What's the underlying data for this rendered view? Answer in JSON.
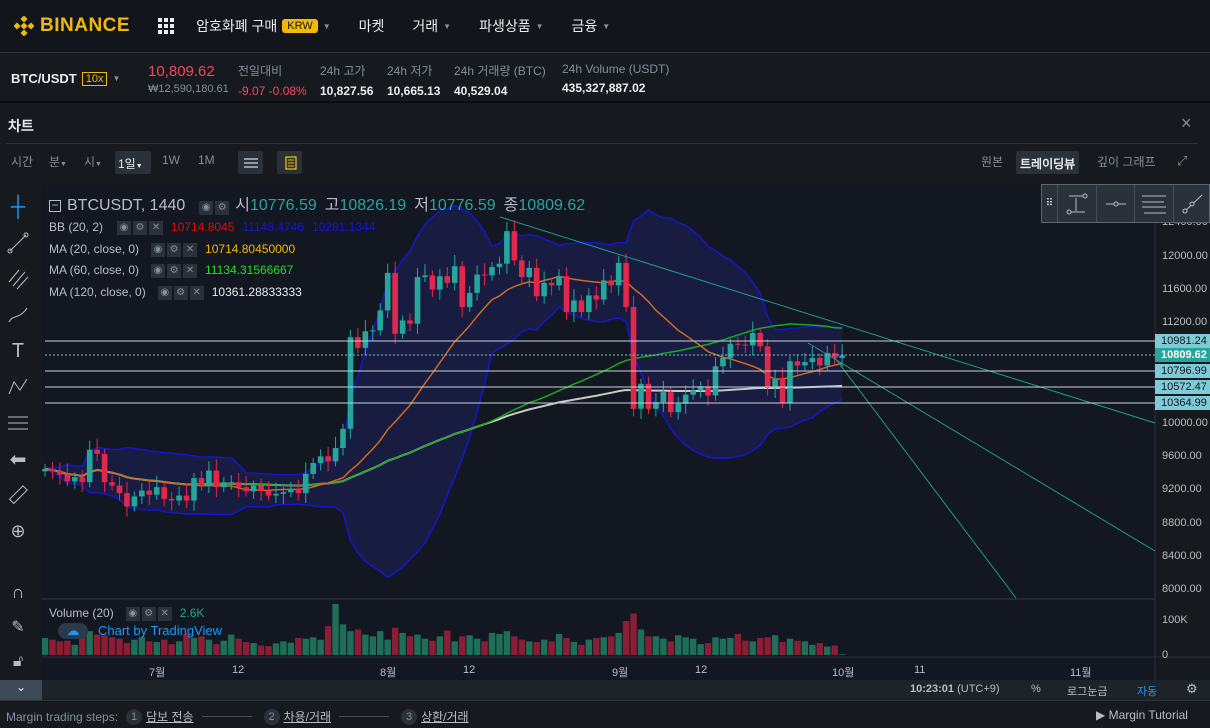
{
  "header": {
    "brand": "BINANCE",
    "nav": [
      {
        "label": "암호화폐 구매",
        "badge": "KRW"
      },
      {
        "label": "마켓"
      },
      {
        "label": "거래"
      },
      {
        "label": "파생상품"
      },
      {
        "label": "금융"
      }
    ]
  },
  "ticker": {
    "pair": "BTC/USDT",
    "leverage": "10x",
    "price": "10,809.62",
    "price_krw": "₩12,590,180.61",
    "stats": [
      {
        "label": "전일대비",
        "value": "-9.07 -0.08%"
      },
      {
        "label": "24h 고가",
        "value": "10,827.56"
      },
      {
        "label": "24h 저가",
        "value": "10,665.13"
      },
      {
        "label": "24h 거래량 (BTC)",
        "value": "40,529.04"
      },
      {
        "label": "24h Volume (USDT)",
        "value": "435,327,887.02"
      }
    ]
  },
  "chart_panel": {
    "title": "차트",
    "toolbar": {
      "time": "시간",
      "minute": "분",
      "hour": "시",
      "day": "1일",
      "week": "1W",
      "month": "1M"
    },
    "views": [
      "원본",
      "트레이딩뷰",
      "깊이 그래프"
    ],
    "active_view": "트레이딩뷰"
  },
  "legend": {
    "symbol": "BTCUSDT, 1440",
    "o_label": "시",
    "o": "10776.59",
    "h_label": "고",
    "h": "10826.19",
    "l_label": "저",
    "l": "10776.59",
    "c_label": "종",
    "c": "10809.62",
    "bb": {
      "label": "BB (20, 2)",
      "basis": "10714.8045",
      "upper": "11148.4746",
      "lower": "10281.1344"
    },
    "ma20": {
      "label": "MA (20, close, 0)",
      "value": "10714.80450000"
    },
    "ma60": {
      "label": "MA (60, close, 0)",
      "value": "11134.31566667"
    },
    "ma120": {
      "label": "MA (120, close, 0)",
      "value": "10361.28833333"
    },
    "volume": {
      "label": "Volume (20)",
      "value": "2.6K"
    },
    "watermark": "Chart by TradingView"
  },
  "price_axis": [
    "12400.00",
    "12000.00",
    "11600.00",
    "11200.00",
    "10000.00",
    "9600.00",
    "9200.00",
    "8800.00",
    "8400.00",
    "8000.00"
  ],
  "price_tags": [
    {
      "value": "10981.24"
    },
    {
      "value": "10809.62",
      "current": true
    },
    {
      "value": "10796.99"
    },
    {
      "value": "10572.47"
    },
    {
      "value": "10364.99"
    }
  ],
  "volume_axis": [
    "100K",
    "0"
  ],
  "time_axis": [
    "7월",
    "12",
    "8월",
    "12",
    "9월",
    "12",
    "10월",
    "11",
    "11월"
  ],
  "bottom_bar": {
    "clock": "10:23:01",
    "tz": "(UTC+9)",
    "percent": "%",
    "log": "로그눈금",
    "auto": "자동"
  },
  "footer": {
    "label": "Margin trading steps:",
    "steps": [
      {
        "n": "1",
        "label": "담보 전송"
      },
      {
        "n": "2",
        "label": "차용/거래"
      },
      {
        "n": "3",
        "label": "상환/거래"
      }
    ],
    "tutorial": "Margin Tutorial"
  },
  "colors": {
    "up": "#26a69a",
    "down": "#e0294a",
    "bb": "#1515d0",
    "ma20": "#d2691e",
    "ma60": "#1aaa1a",
    "ma120": "#c8c8c8",
    "trend": "#1e9e8a",
    "accent": "#f0b90b"
  },
  "chart_data": {
    "type": "candlestick",
    "start_date": "06-16",
    "closes": [
      9450,
      9420,
      9380,
      9300,
      9350,
      9290,
      9680,
      9630,
      9290,
      9250,
      9160,
      9000,
      9120,
      9190,
      9140,
      9230,
      9090,
      9070,
      9130,
      9070,
      9340,
      9250,
      9430,
      9230,
      9290,
      9290,
      9230,
      9180,
      9250,
      9190,
      9130,
      9150,
      9170,
      9210,
      9160,
      9390,
      9520,
      9600,
      9540,
      9700,
      9930,
      11030,
      10900,
      11100,
      11110,
      11350,
      11800,
      11070,
      11230,
      11190,
      11750,
      11770,
      11600,
      11760,
      11680,
      11880,
      11390,
      11560,
      11780,
      11770,
      11870,
      11910,
      12300,
      11950,
      11750,
      11860,
      11520,
      11680,
      11650,
      11760,
      11330,
      11470,
      11330,
      11530,
      11480,
      11710,
      11650,
      11920,
      11390,
      10170,
      10470,
      10170,
      10250,
      10370,
      10130,
      10230,
      10340,
      10390,
      10440,
      10330,
      10680,
      10780,
      10950,
      10940,
      10930,
      11080,
      10920,
      10420,
      10530,
      10240,
      10740,
      10690,
      10730,
      10780,
      10690,
      10840,
      10780,
      10810
    ],
    "volumes_k": [
      50,
      45,
      40,
      42,
      30,
      55,
      70,
      60,
      58,
      52,
      48,
      35,
      45,
      52,
      40,
      38,
      45,
      32,
      40,
      62,
      50,
      55,
      45,
      32,
      42,
      60,
      48,
      38,
      35,
      28,
      26,
      34,
      40,
      36,
      50,
      48,
      52,
      45,
      85,
      150,
      90,
      70,
      75,
      60,
      55,
      70,
      45,
      80,
      65,
      55,
      60,
      48,
      42,
      55,
      72,
      40,
      55,
      58,
      48,
      40,
      65,
      62,
      70,
      55,
      45,
      40,
      38,
      45,
      40,
      62,
      50,
      38,
      30,
      45,
      50,
      52,
      55,
      65,
      100,
      122,
      75,
      55,
      55,
      48,
      40,
      58,
      52,
      48,
      32,
      35,
      52,
      48,
      50,
      62,
      42,
      40,
      50,
      52,
      58,
      38,
      48,
      42,
      40,
      30,
      35,
      25,
      28,
      2
    ],
    "ylim": [
      7900,
      12600
    ]
  }
}
